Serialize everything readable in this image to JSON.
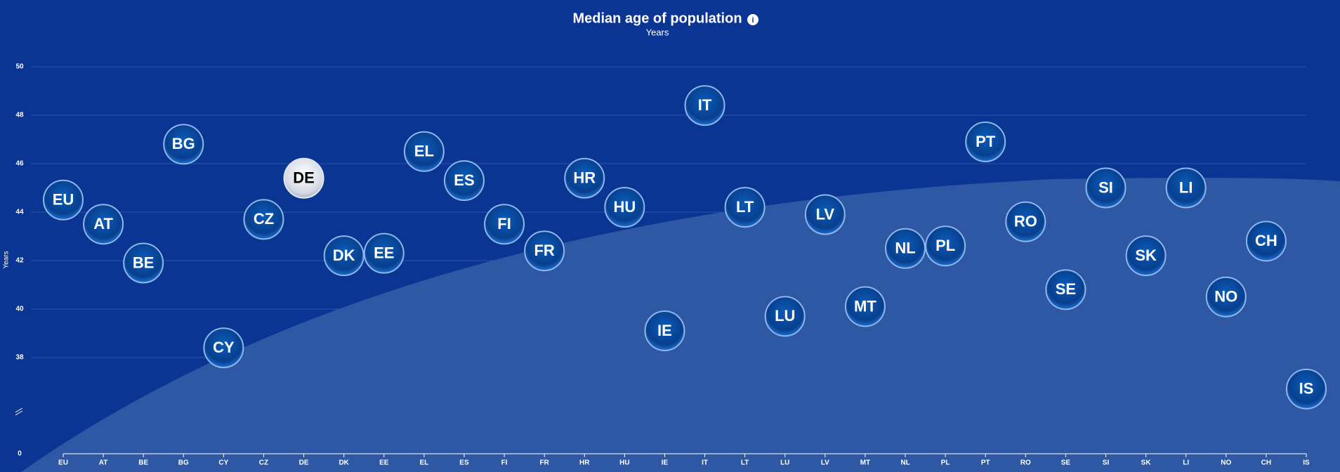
{
  "chart_data": {
    "type": "dot",
    "title": "Median age of population",
    "subtitle": "Years",
    "y_label": "Years",
    "categories": [
      "EU",
      "AT",
      "BE",
      "BG",
      "CY",
      "CZ",
      "DE",
      "DK",
      "EE",
      "EL",
      "ES",
      "FI",
      "FR",
      "HR",
      "HU",
      "IE",
      "IT",
      "LT",
      "LU",
      "LV",
      "MT",
      "NL",
      "PL",
      "PT",
      "RO",
      "SE",
      "SI",
      "SK",
      "LI",
      "NO",
      "CH",
      "IS"
    ],
    "values": [
      44.5,
      43.5,
      41.9,
      46.8,
      38.4,
      43.7,
      45.4,
      42.2,
      42.3,
      46.5,
      45.3,
      43.5,
      42.4,
      45.4,
      44.2,
      39.1,
      48.4,
      44.2,
      39.7,
      43.9,
      40.1,
      42.5,
      42.6,
      46.9,
      43.6,
      40.8,
      45.0,
      42.2,
      45.0,
      40.5,
      42.8,
      36.7
    ],
    "color": "#0a4a9c",
    "highlight": 6,
    "highlight_color": "#e4e8f0",
    "ylim": [
      0,
      50
    ],
    "yticks": [
      0,
      38,
      40,
      42,
      44,
      46,
      48,
      50
    ],
    "y_break": true,
    "grid": true
  }
}
